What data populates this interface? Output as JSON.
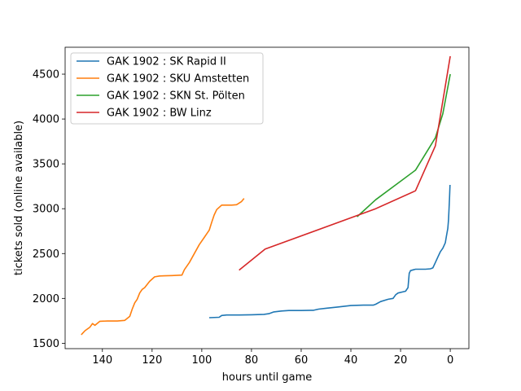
{
  "chart_data": {
    "type": "line",
    "title": "",
    "xlabel": "hours until game",
    "ylabel": "tickets sold (online available)",
    "xlim": [
      155,
      -7.5
    ],
    "ylim": [
      1440,
      4800
    ],
    "xticks": [
      140,
      120,
      100,
      80,
      60,
      40,
      20,
      0
    ],
    "yticks": [
      1500,
      2000,
      2500,
      3000,
      3500,
      4000,
      4500
    ],
    "legend_position": "top-left",
    "series": [
      {
        "name": "GAK 1902 : SK Rapid II",
        "color": "#1f77b4",
        "x": [
          97,
          93,
          92,
          90,
          85,
          80,
          75,
          73,
          71,
          68,
          65,
          60,
          55,
          53,
          50,
          45,
          40,
          35,
          31,
          30,
          28,
          25,
          23,
          22,
          21,
          18,
          17,
          16.5,
          16,
          14,
          10,
          8,
          7,
          6,
          5,
          4,
          3,
          2,
          1.5,
          1,
          0.7,
          0.5,
          0.3,
          0.1
        ],
        "y": [
          1785,
          1790,
          1810,
          1815,
          1815,
          1818,
          1822,
          1830,
          1850,
          1860,
          1865,
          1865,
          1868,
          1880,
          1890,
          1905,
          1920,
          1925,
          1925,
          1935,
          1965,
          1990,
          2000,
          2040,
          2060,
          2080,
          2120,
          2280,
          2310,
          2325,
          2325,
          2330,
          2340,
          2400,
          2460,
          2520,
          2560,
          2620,
          2700,
          2780,
          2880,
          3000,
          3120,
          3265
        ]
      },
      {
        "name": "GAK 1902 : SKU Amstetten",
        "color": "#ff7f0e",
        "x": [
          148.5,
          147,
          145,
          144,
          143,
          141,
          138,
          134,
          131,
          129,
          128,
          127,
          126,
          125,
          124,
          123,
          121,
          119,
          117,
          115,
          112,
          108,
          107,
          105,
          103,
          101,
          99,
          97,
          96,
          95,
          94,
          92,
          88,
          86,
          84,
          83
        ],
        "y": [
          1595,
          1640,
          1680,
          1720,
          1700,
          1745,
          1748,
          1748,
          1755,
          1800,
          1880,
          1950,
          1990,
          2060,
          2100,
          2120,
          2190,
          2240,
          2250,
          2252,
          2255,
          2260,
          2320,
          2400,
          2500,
          2600,
          2680,
          2760,
          2850,
          2930,
          2990,
          3040,
          3040,
          3045,
          3080,
          3115
        ]
      },
      {
        "name": "GAK 1902 : SKN St. Pölten",
        "color": "#2ca02c",
        "x": [
          37.5,
          30,
          14,
          6,
          3,
          0
        ],
        "y": [
          2910,
          3100,
          3430,
          3790,
          4060,
          4500
        ]
      },
      {
        "name": "GAK 1902 : BW Linz",
        "color": "#d62728",
        "x": [
          85,
          74.5,
          30,
          14,
          6,
          0
        ],
        "y": [
          2315,
          2550,
          3000,
          3200,
          3700,
          4700
        ]
      }
    ]
  }
}
